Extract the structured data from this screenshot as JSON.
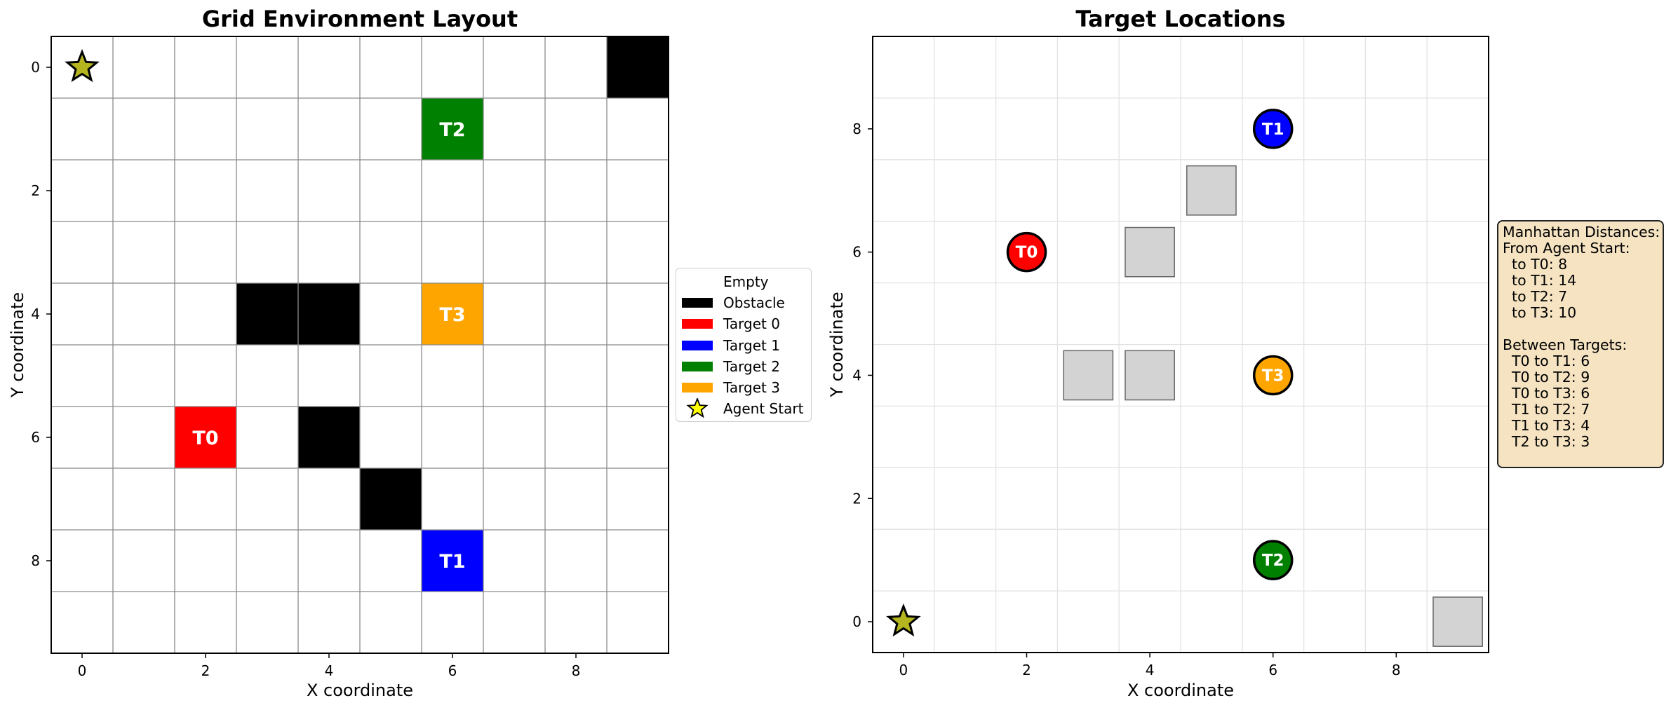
{
  "chart_data": [
    {
      "type": "heatmap",
      "title": "Grid Environment Layout",
      "xlabel": "X coordinate",
      "ylabel": "Y coordinate",
      "xlim": [
        -0.5,
        9.5
      ],
      "ylim": [
        9.5,
        -0.5
      ],
      "xticks": [
        "0",
        "2",
        "4",
        "6",
        "8"
      ],
      "yticks": [
        "0",
        "2",
        "4",
        "6",
        "8"
      ],
      "grid_size": [
        10,
        10
      ],
      "grid": true,
      "obstacles": [
        [
          9,
          0
        ],
        [
          3,
          4
        ],
        [
          4,
          4
        ],
        [
          4,
          6
        ],
        [
          5,
          7
        ]
      ],
      "targets": [
        {
          "label": "T0",
          "x": 2,
          "y": 6,
          "color": "#ff0000"
        },
        {
          "label": "T1",
          "x": 6,
          "y": 8,
          "color": "#0000ff"
        },
        {
          "label": "T2",
          "x": 6,
          "y": 1,
          "color": "#008000"
        },
        {
          "label": "T3",
          "x": 6,
          "y": 4,
          "color": "#ffa500"
        }
      ],
      "agent_start": {
        "x": 0,
        "y": 0,
        "marker": "star",
        "color": "#b5b51f"
      },
      "legend_position": "center-right",
      "legend": [
        {
          "label": "Empty",
          "color": "#ffffff"
        },
        {
          "label": "Obstacle",
          "color": "#000000"
        },
        {
          "label": "Target 0",
          "color": "#ff0000"
        },
        {
          "label": "Target 1",
          "color": "#0000ff"
        },
        {
          "label": "Target 2",
          "color": "#008000"
        },
        {
          "label": "Target 3",
          "color": "#ffa500"
        },
        {
          "label": "Agent Start",
          "color": "#ffff00",
          "marker": "star"
        }
      ]
    },
    {
      "type": "scatter",
      "title": "Target Locations",
      "xlabel": "X coordinate",
      "ylabel": "Y coordinate",
      "xlim": [
        -0.5,
        9.5
      ],
      "ylim": [
        -0.5,
        9.5
      ],
      "xticks": [
        "0",
        "2",
        "4",
        "6",
        "8"
      ],
      "yticks": [
        "0",
        "2",
        "4",
        "6",
        "8"
      ],
      "grid": true,
      "obstacles": [
        [
          9,
          0
        ],
        [
          3,
          4
        ],
        [
          4,
          4
        ],
        [
          4,
          6
        ],
        [
          5,
          7
        ]
      ],
      "targets": [
        {
          "label": "T0",
          "x": 2,
          "y": 6,
          "color": "#ff0000"
        },
        {
          "label": "T1",
          "x": 6,
          "y": 8,
          "color": "#0000ff"
        },
        {
          "label": "T2",
          "x": 6,
          "y": 1,
          "color": "#008000"
        },
        {
          "label": "T3",
          "x": 6,
          "y": 4,
          "color": "#ffa500"
        }
      ],
      "agent_start": {
        "x": 0,
        "y": 0,
        "marker": "star",
        "color": "#b5b51f"
      },
      "annotation_lines": [
        "Manhattan Distances:",
        "From Agent Start:",
        "  to T0: 8",
        "  to T1: 14",
        "  to T2: 7",
        "  to T3: 10",
        "",
        "Between Targets:",
        "  T0 to T1: 6",
        "  T0 to T2: 9",
        "  T0 to T3: 6",
        "  T1 to T2: 7",
        "  T1 to T3: 4",
        "  T2 to T3: 3"
      ],
      "annotation_position": "right",
      "annotation_color": "#f5e3c2"
    }
  ]
}
